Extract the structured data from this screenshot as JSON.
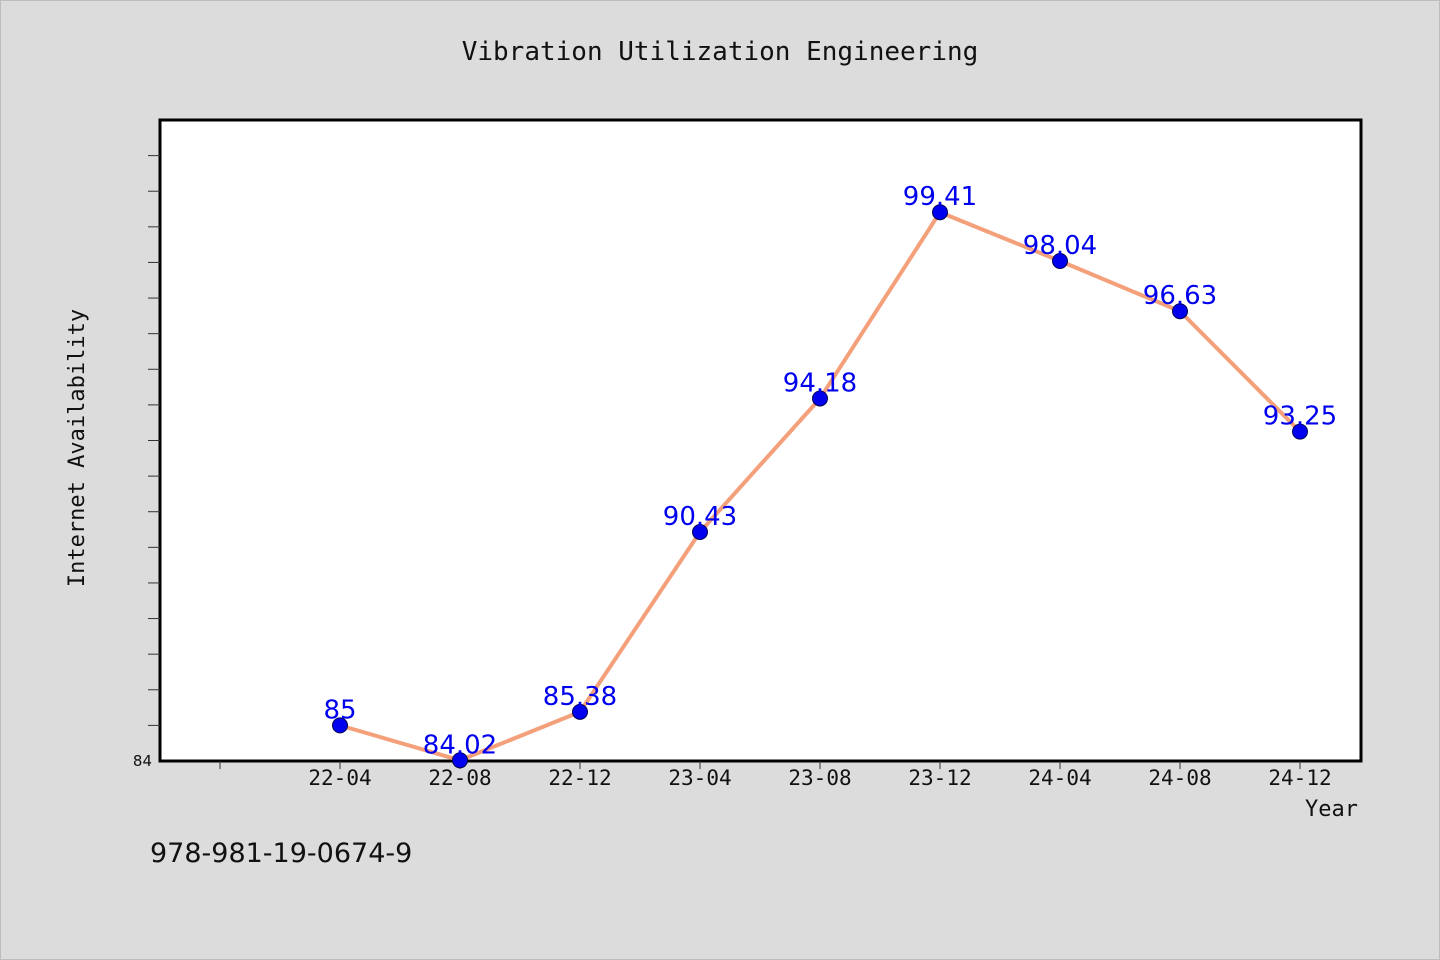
{
  "chart_data": {
    "type": "line",
    "title": "Vibration Utilization Engineering",
    "xlabel": "Year",
    "ylabel": "Internet Availability",
    "x": [
      "22-04",
      "22-08",
      "22-12",
      "23-04",
      "23-08",
      "23-12",
      "24-04",
      "24-08",
      "24-12"
    ],
    "series": [
      {
        "values": [
          85,
          84.02,
          85.38,
          90.43,
          94.18,
          99.41,
          98.04,
          96.63,
          93.25
        ]
      }
    ],
    "data_labels": [
      "85",
      "84.02",
      "85.38",
      "90.43",
      "94.18",
      "99.41",
      "98.04",
      "96.63",
      "93.25"
    ],
    "ylim": [
      84,
      102
    ],
    "y_tick_labels": [
      "84"
    ],
    "grid": false,
    "line_color": "#f4a07a",
    "marker_color": "#0000ee",
    "label_color": "#0000ee"
  },
  "footer": {
    "isbn": "978-981-19-0674-9"
  }
}
